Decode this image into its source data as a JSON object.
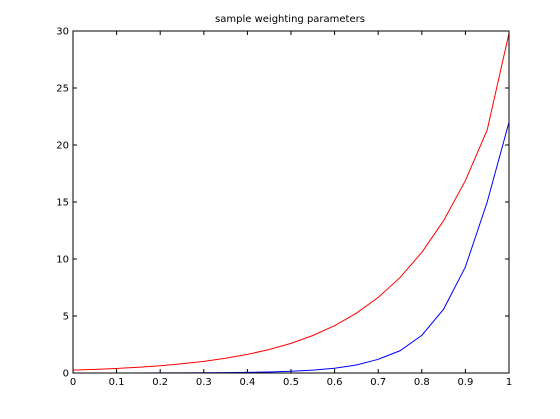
{
  "chart_data": {
    "type": "line",
    "title": "sample weighting parameters",
    "xlabel": "",
    "ylabel": "",
    "xlim": [
      0,
      1
    ],
    "ylim": [
      0,
      30
    ],
    "x_ticks": [
      "0",
      "0.1",
      "0.2",
      "0.3",
      "0.4",
      "0.5",
      "0.6",
      "0.7",
      "0.8",
      "0.9",
      "1"
    ],
    "y_ticks": [
      "0",
      "5",
      "10",
      "15",
      "20",
      "25",
      "30"
    ],
    "grid": false,
    "legend": "none",
    "x": [
      0,
      0.05,
      0.1,
      0.15,
      0.2,
      0.25,
      0.3,
      0.35,
      0.4,
      0.45,
      0.5,
      0.55,
      0.6,
      0.65,
      0.7,
      0.75,
      0.8,
      0.85,
      0.9,
      0.95,
      1
    ],
    "series": [
      {
        "color": "#ff0000",
        "values": [
          0.25,
          0.32,
          0.4,
          0.51,
          0.64,
          0.81,
          1.02,
          1.29,
          1.63,
          2.06,
          2.6,
          3.29,
          4.15,
          5.25,
          6.63,
          8.37,
          10.58,
          13.36,
          16.88,
          21.32,
          29.8
        ]
      },
      {
        "color": "#0000ff",
        "values": [
          0.0,
          0.0,
          0.0,
          0.0,
          0.01,
          0.01,
          0.02,
          0.03,
          0.05,
          0.09,
          0.15,
          0.25,
          0.42,
          0.7,
          1.2,
          1.95,
          3.3,
          5.6,
          9.3,
          15.0,
          22.0
        ]
      }
    ]
  }
}
